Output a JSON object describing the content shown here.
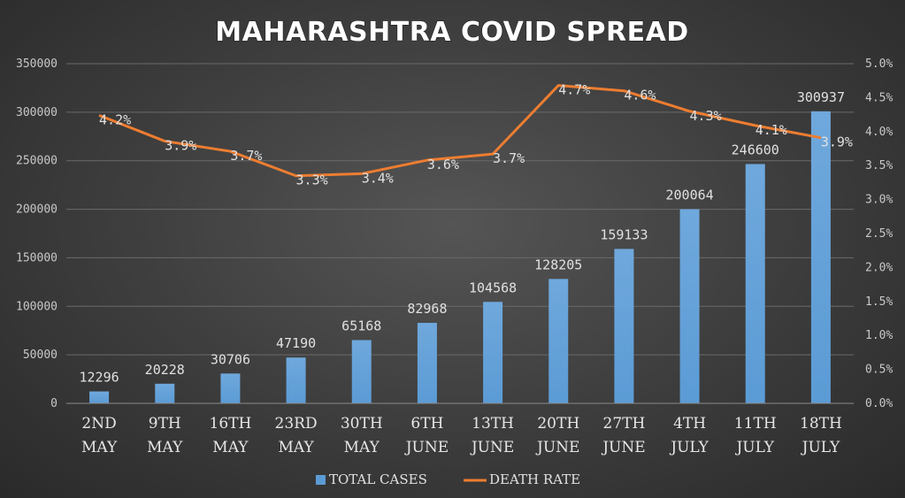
{
  "chart_data": {
    "type": "bar+line",
    "title": "MAHARASHTRA COVID SPREAD",
    "categories": [
      [
        "2ND",
        "MAY"
      ],
      [
        "9TH",
        "MAY"
      ],
      [
        "16TH",
        "MAY"
      ],
      [
        "23RD",
        "MAY"
      ],
      [
        "30TH",
        "MAY"
      ],
      [
        "6TH",
        "JUNE"
      ],
      [
        "13TH",
        "JUNE"
      ],
      [
        "20TH",
        "JUNE"
      ],
      [
        "27TH",
        "JUNE"
      ],
      [
        "4TH",
        "JULY"
      ],
      [
        "11TH",
        "JULY"
      ],
      [
        "18TH",
        "JULY"
      ]
    ],
    "series": [
      {
        "name": "TOTAL CASES",
        "kind": "bar",
        "axis": "left",
        "color": "#5b9bd5",
        "values": [
          12296,
          20228,
          30706,
          47190,
          65168,
          82968,
          104568,
          128205,
          159133,
          200064,
          246600,
          300937
        ],
        "labels": [
          "12296",
          "20228",
          "30706",
          "47190",
          "65168",
          "82968",
          "104568",
          "128205",
          "159133",
          "200064",
          "246600",
          "300937"
        ]
      },
      {
        "name": "DEATH RATE",
        "kind": "line",
        "axis": "right",
        "color": "#ed7d31",
        "values": [
          4.24,
          3.86,
          3.71,
          3.35,
          3.38,
          3.58,
          3.67,
          4.68,
          4.6,
          4.3,
          4.09,
          3.91
        ],
        "labels": [
          "4.2%",
          "3.9%",
          "3.7%",
          "3.3%",
          "3.4%",
          "3.6%",
          "3.7%",
          "4.7%",
          "4.6%",
          "4.3%",
          "4.1%",
          "3.9%"
        ]
      }
    ],
    "left_axis": {
      "min": 0,
      "max": 350000,
      "ticks": [
        "0",
        "50000",
        "100000",
        "150000",
        "200000",
        "250000",
        "300000",
        "350000"
      ]
    },
    "right_axis": {
      "min": 0,
      "max": 5,
      "ticks": [
        "0.0%",
        "0.5%",
        "1.0%",
        "1.5%",
        "2.0%",
        "2.5%",
        "3.0%",
        "3.5%",
        "4.0%",
        "4.5%",
        "5.0%"
      ]
    },
    "grid": true,
    "legend_position": "bottom"
  }
}
